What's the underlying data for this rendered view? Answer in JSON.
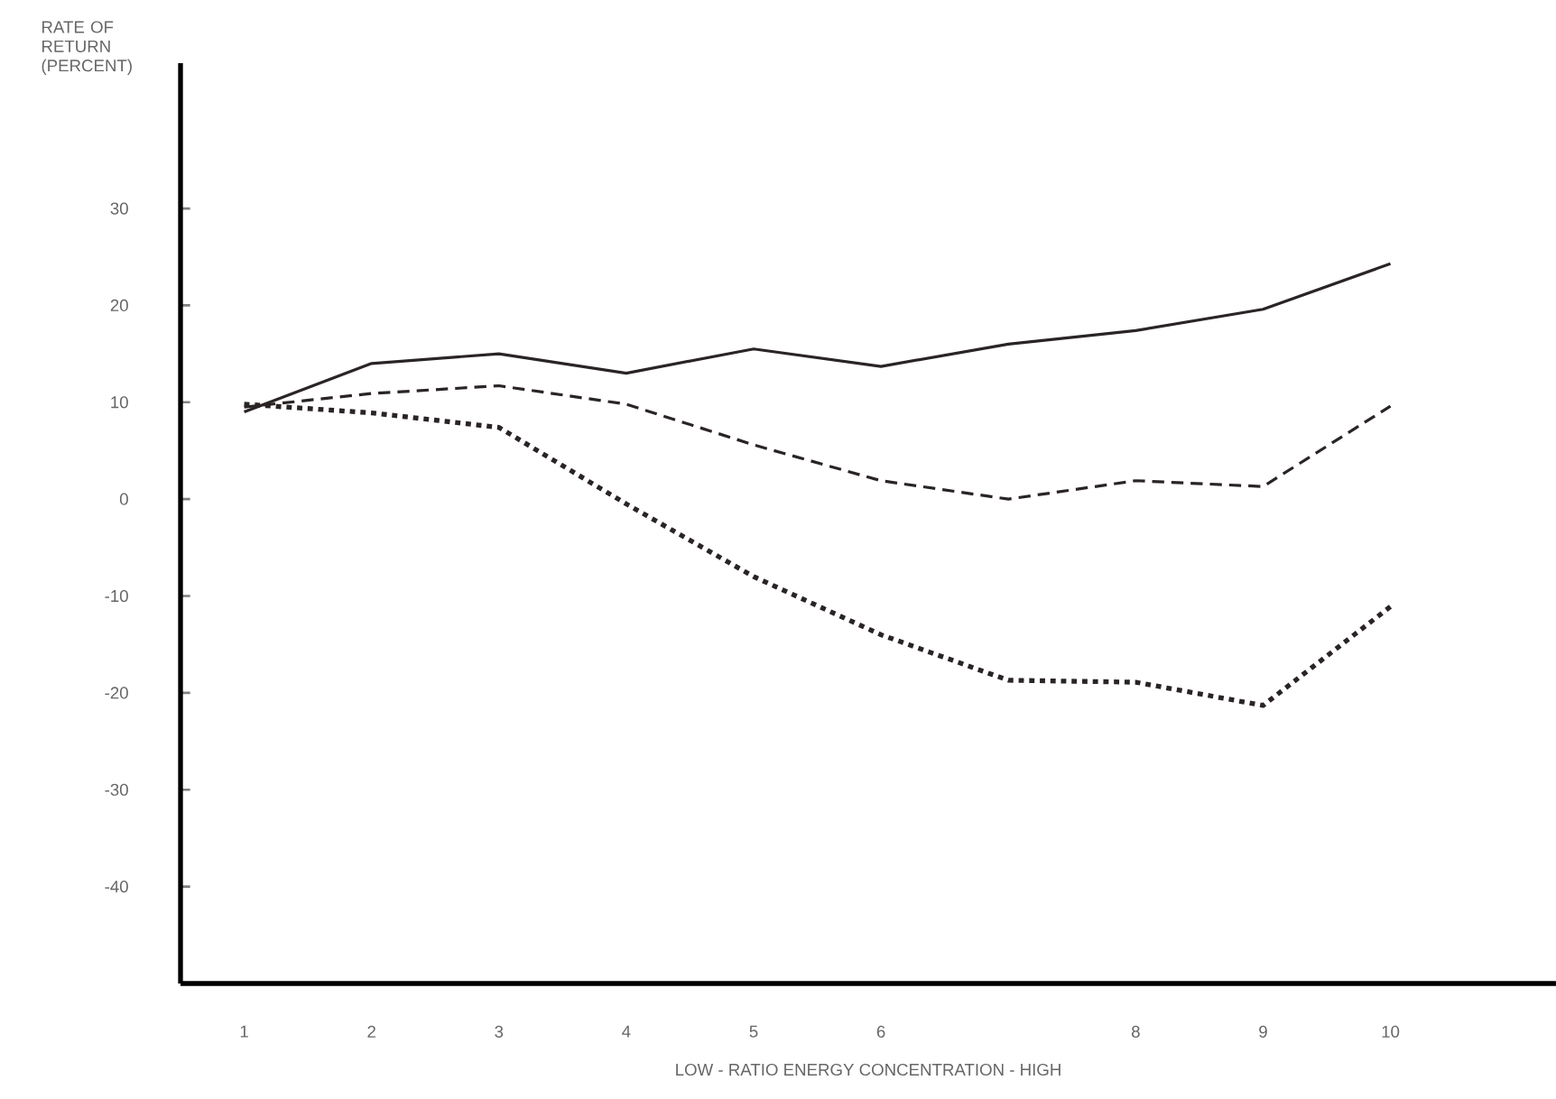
{
  "chart_data": {
    "type": "line",
    "ylabel": "RATE OF RETURN (PERCENT)",
    "xlabel": "LOW - RATIO ENERGY CONCENTRATION - HIGH",
    "x": [
      1,
      2,
      3,
      4,
      5,
      6,
      7,
      8,
      9,
      10
    ],
    "series": [
      {
        "color": "#2a2424",
        "line_style": "solid",
        "values": [
          9,
          14,
          15,
          13,
          15.5,
          13.7,
          16,
          17.4,
          19.6,
          24.3
        ]
      },
      {
        "color": "#2a2424",
        "line_style": "dashed",
        "values": [
          9.5,
          10.9,
          11.7,
          9.8,
          5.6,
          1.9,
          0,
          1.9,
          1.3,
          9.6
        ]
      },
      {
        "color": "#2a2424",
        "line_style": "dotted",
        "values": [
          9.8,
          8.9,
          7.4,
          -0.5,
          -8,
          -14,
          -18.7,
          -18.9,
          -21.3,
          -11.1
        ]
      }
    ],
    "xlim": [
      0.5,
      11.3
    ],
    "ylim": [
      -50,
      45
    ],
    "xticks": [
      1,
      2,
      3,
      4,
      5,
      6,
      8,
      9,
      10
    ],
    "yticks": [
      -40,
      -30,
      -20,
      -10,
      0,
      10,
      20,
      30
    ],
    "grid": false,
    "marker": "none"
  }
}
